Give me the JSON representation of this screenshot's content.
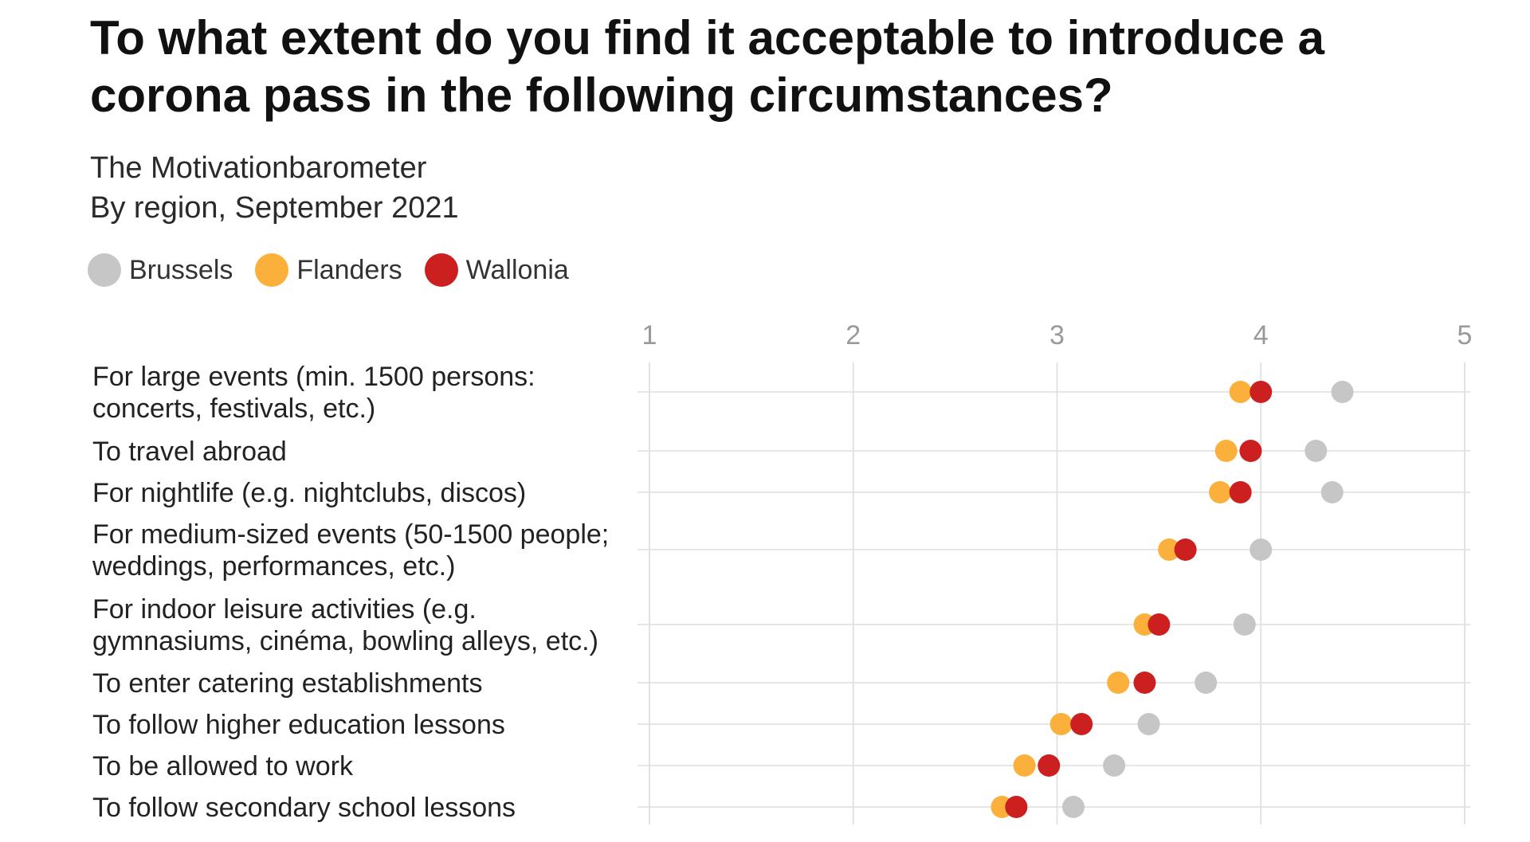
{
  "chart_data": {
    "type": "scatter",
    "title": "To what extent do you find it acceptable to introduce a corona pass in the following circumstances?",
    "subtitle_lines": [
      "The Motivationbarometer",
      "By region, September 2021"
    ],
    "xlim": [
      1,
      5
    ],
    "x_ticks": [
      "1",
      "2",
      "3",
      "4",
      "5"
    ],
    "grid": true,
    "legend_position": "top-left",
    "categories": [
      [
        "For large events (min. 1500 persons:",
        "concerts, festivals, etc.)"
      ],
      [
        "To travel abroad"
      ],
      [
        "For nightlife (e.g. nightclubs, discos)"
      ],
      [
        "For medium-sized events (50-1500 people;",
        "weddings, performances, etc.)"
      ],
      [
        "For indoor leisure activities (e.g.",
        "gymnasiums, cinéma, bowling alleys, etc.)"
      ],
      [
        "To enter catering establishments"
      ],
      [
        "To follow higher education lessons"
      ],
      [
        "To be allowed to work"
      ],
      [
        "To follow secondary school lessons"
      ]
    ],
    "series": [
      {
        "name": "Brussels",
        "color": "#c6c6c6",
        "values": [
          4.4,
          4.27,
          4.35,
          4.0,
          3.92,
          3.73,
          3.45,
          3.28,
          3.08
        ]
      },
      {
        "name": "Flanders",
        "color": "#fbb03b",
        "values": [
          3.9,
          3.83,
          3.8,
          3.55,
          3.43,
          3.3,
          3.02,
          2.84,
          2.73
        ]
      },
      {
        "name": "Wallonia",
        "color": "#cc1f1f",
        "values": [
          4.0,
          3.95,
          3.9,
          3.63,
          3.5,
          3.43,
          3.12,
          2.96,
          2.8
        ]
      }
    ]
  }
}
